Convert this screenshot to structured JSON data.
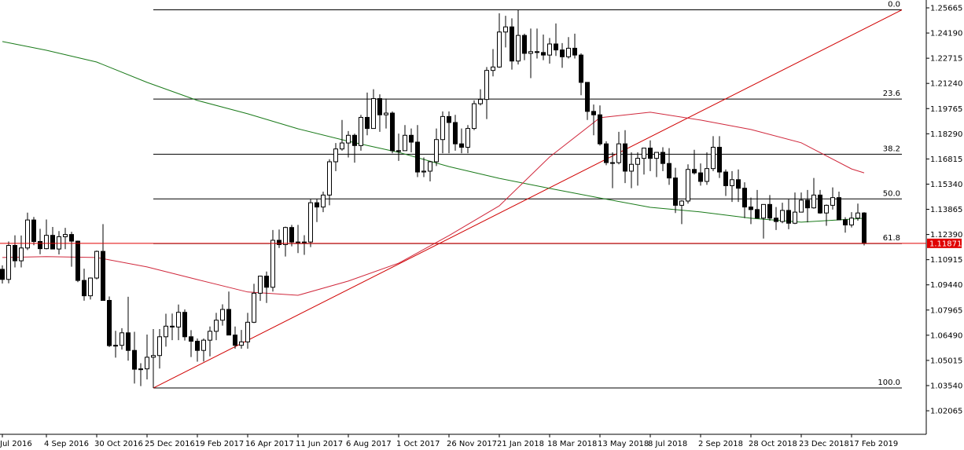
{
  "chart_data": {
    "type": "candlestick",
    "categories": [
      "Jul 2016",
      null,
      null,
      null,
      null,
      null,
      null,
      "4 Sep 2016",
      null,
      null,
      null,
      null,
      null,
      null,
      null,
      "30 Oct 2016",
      null,
      null,
      null,
      null,
      null,
      null,
      null,
      "25 Dec 2016",
      null,
      null,
      null,
      null,
      null,
      null,
      null,
      "19 Feb 2017",
      null,
      null,
      null,
      null,
      null,
      null,
      null,
      "16 Apr 2017",
      null,
      null,
      null,
      null,
      null,
      null,
      null,
      "11 Jun 2017",
      null,
      null,
      null,
      null,
      null,
      null,
      null,
      "6 Aug 2017",
      null,
      null,
      null,
      null,
      null,
      null,
      null,
      "1 Oct 2017",
      null,
      null,
      null,
      null,
      null,
      null,
      null,
      "26 Nov 2017",
      null,
      null,
      null,
      null,
      null,
      null,
      null,
      "21 Jan 2018",
      null,
      null,
      null,
      null,
      null,
      null,
      null,
      "18 Mar 2018",
      null,
      null,
      null,
      null,
      null,
      null,
      null,
      "13 May 2018",
      null,
      null,
      null,
      null,
      null,
      null,
      null,
      "8 Jul 2018",
      null,
      null,
      null,
      null,
      null,
      null,
      null,
      "2 Sep 2018",
      null,
      null,
      null,
      null,
      null,
      null,
      null,
      "28 Oct 2018",
      null,
      null,
      null,
      null,
      null,
      null,
      null,
      "23 Dec 2018",
      null,
      null,
      null,
      null,
      null,
      null,
      null,
      "17 Feb 2019",
      null,
      null
    ],
    "open": [
      1.1035,
      1.0976,
      1.1175,
      1.1085,
      1.116,
      1.1324,
      1.1198,
      1.1156,
      1.1234,
      1.1154,
      1.1226,
      1.1239,
      1.12,
      1.097,
      1.088,
      1.0984,
      1.114,
      1.0853,
      1.0588,
      1.059,
      1.0663,
      1.056,
      1.045,
      1.0452,
      1.052,
      1.053,
      1.064,
      1.0702,
      1.0697,
      1.0783,
      1.064,
      1.0614,
      1.056,
      1.062,
      1.0672,
      1.0737,
      1.08,
      1.065,
      1.059,
      1.061,
      1.0725,
      1.0895,
      1.0995,
      1.093,
      1.1205,
      1.118,
      1.128,
      1.1195,
      1.1195,
      1.1195,
      1.1425,
      1.14,
      1.147,
      1.1665,
      1.174,
      1.1775,
      1.182,
      1.176,
      1.1925,
      1.186,
      1.2035,
      1.194,
      1.195,
      1.173,
      1.173,
      1.182,
      1.178,
      1.1605,
      1.161,
      1.1665,
      1.1795,
      1.193,
      1.1895,
      1.177,
      1.175,
      1.186,
      1.2005,
      1.203,
      1.22,
      1.222,
      1.2425,
      1.2455,
      1.2255,
      1.2405,
      1.23,
      1.231,
      1.2305,
      1.229,
      1.2355,
      1.232,
      1.228,
      1.233,
      1.229,
      1.213,
      1.196,
      1.194,
      1.177,
      1.166,
      1.166,
      1.177,
      1.161,
      1.165,
      1.1685,
      1.1745,
      1.1685,
      1.172,
      1.1655,
      1.157,
      1.141,
      1.1435,
      1.162,
      1.16,
      1.155,
      1.1625,
      1.175,
      1.1605,
      1.1525,
      1.156,
      1.151,
      1.14,
      1.1385,
      1.1335,
      1.1415,
      1.1335,
      1.1315,
      1.138,
      1.1305,
      1.137,
      1.144,
      1.1395,
      1.147,
      1.1365,
      1.141,
      1.1455,
      1.1325,
      1.1295,
      1.1335,
      1.1365
    ],
    "high": [
      1.1058,
      1.1198,
      1.1234,
      1.1233,
      1.1367,
      1.1342,
      1.1272,
      1.1327,
      1.1283,
      1.1259,
      1.1278,
      1.1255,
      1.1203,
      1.1039,
      1.0987,
      1.1145,
      1.13,
      1.0876,
      1.0675,
      1.069,
      1.0874,
      1.0669,
      1.0485,
      1.0653,
      1.0685,
      1.0685,
      1.0775,
      1.0776,
      1.0829,
      1.08,
      1.0679,
      1.063,
      1.063,
      1.07,
      1.078,
      1.083,
      1.0905,
      1.07,
      1.068,
      1.078,
      1.095,
      1.0998,
      1.1022,
      1.1265,
      1.1268,
      1.1285,
      1.1295,
      1.1295,
      1.1235,
      1.1445,
      1.1445,
      1.149,
      1.168,
      1.1775,
      1.191,
      1.1845,
      1.183,
      1.194,
      1.207,
      1.209,
      1.206,
      1.2035,
      1.196,
      1.183,
      1.188,
      1.186,
      1.188,
      1.169,
      1.167,
      1.186,
      1.196,
      1.196,
      1.194,
      1.186,
      1.188,
      1.2025,
      1.209,
      1.222,
      1.2325,
      1.2535,
      1.252,
      1.2505,
      1.2555,
      1.2415,
      1.2445,
      1.2445,
      1.241,
      1.239,
      1.2475,
      1.236,
      1.2395,
      1.2415,
      1.23,
      1.213,
      1.2,
      1.1995,
      1.1785,
      1.172,
      1.184,
      1.185,
      1.172,
      1.172,
      1.1745,
      1.179,
      1.172,
      1.175,
      1.1745,
      1.163,
      1.144,
      1.165,
      1.1735,
      1.1655,
      1.172,
      1.1815,
      1.1815,
      1.162,
      1.161,
      1.162,
      1.1545,
      1.1455,
      1.15,
      1.1415,
      1.147,
      1.14,
      1.1425,
      1.1445,
      1.1485,
      1.1485,
      1.15,
      1.157,
      1.15,
      1.1415,
      1.1515,
      1.149,
      1.134,
      1.137,
      1.142,
      1.137
    ],
    "low": [
      1.0952,
      1.0953,
      1.1046,
      1.1046,
      1.1148,
      1.1176,
      1.1123,
      1.1152,
      1.1153,
      1.1122,
      1.1153,
      1.105,
      1.096,
      1.0851,
      1.0858,
      1.0976,
      1.0851,
      1.058,
      1.0518,
      1.0565,
      1.05,
      1.0366,
      1.0351,
      1.039,
      1.034,
      1.0454,
      1.0582,
      1.062,
      1.062,
      1.0618,
      1.0521,
      1.0494,
      1.0495,
      1.0525,
      1.062,
      1.0705,
      1.065,
      1.057,
      1.057,
      1.057,
      1.072,
      1.085,
      1.0838,
      1.0905,
      1.116,
      1.111,
      1.117,
      1.113,
      1.112,
      1.1165,
      1.1312,
      1.137,
      1.141,
      1.161,
      1.173,
      1.169,
      1.166,
      1.173,
      1.182,
      1.186,
      1.184,
      1.186,
      1.1715,
      1.167,
      1.173,
      1.172,
      1.1575,
      1.1575,
      1.155,
      1.164,
      1.1715,
      1.1715,
      1.173,
      1.1715,
      1.1715,
      1.185,
      1.1995,
      1.1915,
      1.2165,
      1.2215,
      1.2335,
      1.2205,
      1.2235,
      1.226,
      1.2155,
      1.227,
      1.226,
      1.224,
      1.2285,
      1.2215,
      1.227,
      1.227,
      1.2055,
      1.191,
      1.182,
      1.176,
      1.1645,
      1.151,
      1.165,
      1.154,
      1.151,
      1.1525,
      1.159,
      1.161,
      1.1575,
      1.161,
      1.153,
      1.1365,
      1.13,
      1.142,
      1.159,
      1.1525,
      1.153,
      1.161,
      1.157,
      1.1465,
      1.143,
      1.143,
      1.1335,
      1.13,
      1.1335,
      1.1215,
      1.132,
      1.1265,
      1.1305,
      1.127,
      1.13,
      1.137,
      1.131,
      1.139,
      1.136,
      1.129,
      1.1385,
      1.1325,
      1.125,
      1.128,
      1.132,
      1.1175
    ],
    "close": [
      1.0976,
      1.1175,
      1.1085,
      1.116,
      1.1324,
      1.1198,
      1.1156,
      1.1234,
      1.1154,
      1.1226,
      1.1239,
      1.12,
      1.097,
      1.088,
      1.0984,
      1.114,
      1.0853,
      1.0588,
      1.059,
      1.0663,
      1.056,
      1.045,
      1.0452,
      1.052,
      1.053,
      1.064,
      1.0702,
      1.0697,
      1.0783,
      1.064,
      1.0614,
      1.056,
      1.062,
      1.0672,
      1.0737,
      1.08,
      1.065,
      1.059,
      1.061,
      1.0725,
      1.0895,
      1.0995,
      1.093,
      1.1205,
      1.118,
      1.128,
      1.1195,
      1.1195,
      1.1195,
      1.1425,
      1.14,
      1.147,
      1.1665,
      1.174,
      1.1775,
      1.182,
      1.176,
      1.1925,
      1.186,
      1.2035,
      1.194,
      1.195,
      1.173,
      1.173,
      1.182,
      1.178,
      1.1605,
      1.161,
      1.1665,
      1.1795,
      1.193,
      1.1895,
      1.177,
      1.175,
      1.186,
      1.2005,
      1.203,
      1.22,
      1.222,
      1.2425,
      1.2455,
      1.2255,
      1.2405,
      1.23,
      1.231,
      1.2305,
      1.229,
      1.2355,
      1.232,
      1.228,
      1.233,
      1.229,
      1.213,
      1.196,
      1.194,
      1.177,
      1.166,
      1.166,
      1.177,
      1.161,
      1.165,
      1.1685,
      1.1745,
      1.1685,
      1.172,
      1.1655,
      1.157,
      1.141,
      1.1435,
      1.162,
      1.16,
      1.155,
      1.1625,
      1.175,
      1.1605,
      1.1525,
      1.156,
      1.151,
      1.14,
      1.1385,
      1.1335,
      1.1415,
      1.1335,
      1.1315,
      1.138,
      1.1305,
      1.137,
      1.144,
      1.1395,
      1.147,
      1.1365,
      1.141,
      1.1455,
      1.1325,
      1.1295,
      1.1335,
      1.1365,
      1.1187
    ],
    "up_color": "#ffffff",
    "down_color": "#000000",
    "ylim": [
      1.00687,
      1.26125
    ],
    "yticks": [
      1.25665,
      {
        "value": 1.2419,
        "label": "1.24190"
      },
      1.22715,
      {
        "value": 1.2124,
        "label": "1.21240"
      },
      1.19765,
      {
        "value": 1.1829,
        "label": "1.18290"
      },
      1.16815,
      {
        "value": 1.1534,
        "label": "1.15340"
      },
      1.13865,
      {
        "value": 1.1239,
        "label": "1.12390"
      },
      1.10915,
      {
        "value": 1.0944,
        "label": "1.09440"
      },
      1.07965,
      {
        "value": 1.0649,
        "label": "1.06490"
      },
      1.05015,
      {
        "value": 1.0354,
        "label": "1.03540"
      },
      1.02065
    ],
    "overlays": [
      {
        "color": "#1a7a1a",
        "x": [
          "17 Jul 2016",
          "4 Sep 2016",
          "30 Oct 2016",
          "25 Dec 2016",
          "19 Feb 2017",
          "16 Apr 2017",
          "11 Jun 2017",
          "6 Aug 2017",
          "1 Oct 2017",
          "26 Nov 2017",
          "21 Jan 2018",
          "18 Mar 2018",
          "13 May 2018",
          "8 Jul 2018",
          "2 Sep 2018",
          "28 Oct 2018",
          "23 Dec 2018",
          "17 Feb 2019",
          "3 Mar 2019"
        ],
        "values": [
          1.2369,
          1.2318,
          1.2249,
          1.213,
          1.2024,
          1.1946,
          1.1858,
          1.1785,
          1.172,
          1.1637,
          1.1568,
          1.1509,
          1.1453,
          1.1398,
          1.1371,
          1.1334,
          1.1311,
          1.1329,
          1.1334
        ]
      },
      {
        "color": "#d0283c",
        "x": [
          "17 Jul 2016",
          "4 Sep 2016",
          "30 Oct 2016",
          "25 Dec 2016",
          "19 Feb 2017",
          "16 Apr 2017",
          "11 Jun 2017",
          "6 Aug 2017",
          "1 Oct 2017",
          "26 Nov 2017",
          "21 Jan 2018",
          "18 Mar 2018",
          "13 May 2018",
          "8 Jul 2018",
          "2 Sep 2018",
          "28 Oct 2018",
          "23 Dec 2018",
          "17 Feb 2019",
          "3 Mar 2019"
        ],
        "values": [
          1.1104,
          1.1109,
          1.1104,
          1.1049,
          1.0975,
          1.0902,
          1.0883,
          1.0966,
          1.1071,
          1.1233,
          1.1407,
          1.1693,
          1.1923,
          1.1955,
          1.1909,
          1.1854,
          1.1776,
          1.1623,
          1.16
        ]
      }
    ],
    "fibonacci": {
      "start": "1 Jan 2017",
      "end": "14 Apr 2019",
      "color": "#000000",
      "trend_color": "#d00000",
      "levels": [
        {
          "value": 1.2555,
          "label": "0.0"
        },
        {
          "value": 1.20323,
          "label": "23.6"
        },
        {
          "value": 1.17089,
          "label": "38.2"
        },
        {
          "value": 1.14475,
          "label": "50.0"
        },
        {
          "value": 1.11861,
          "label": "61.8"
        },
        {
          "value": 1.034,
          "label": "100.0"
        }
      ]
    },
    "current_price": {
      "value": 1.11871,
      "color": "#e00000"
    }
  }
}
